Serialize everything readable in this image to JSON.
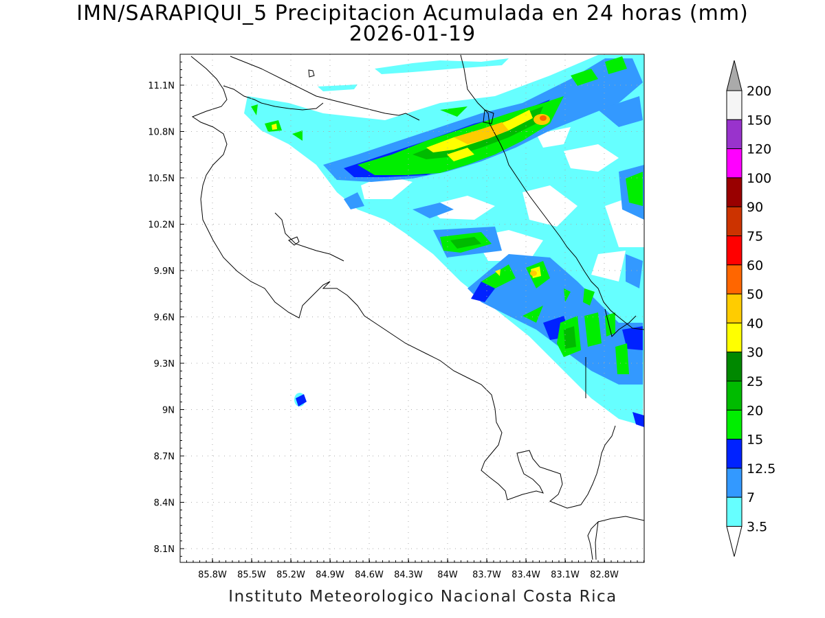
{
  "title": "IMN/SARAPIQUI_5 Precipitacion Acumulada en 24 horas (mm)",
  "date": "2026-01-19",
  "footer": "Instituto Meteorologico Nacional Costa Rica",
  "map": {
    "lon_range": [
      -86.0,
      -82.58
    ],
    "lat_range": [
      8.0,
      11.3
    ],
    "lon_labels": [
      "85.8W",
      "85.5W",
      "85.2W",
      "84.9W",
      "84.6W",
      "84.3W",
      "84W",
      "83.7W",
      "83.4W",
      "83.1W",
      "82.8W"
    ],
    "lat_labels": [
      "11.1N",
      "10.8N",
      "10.5N",
      "10.2N",
      "9.9N",
      "9.6N",
      "9.3N",
      "9N",
      "8.7N",
      "8.4N",
      "8.1N"
    ]
  },
  "colorbar": {
    "levels": [
      "3.5",
      "7",
      "12.5",
      "15",
      "20",
      "25",
      "30",
      "40",
      "50",
      "60",
      "75",
      "90",
      "100",
      "120",
      "150",
      "200"
    ],
    "colors": [
      "#66ffff",
      "#3399ff",
      "#0022ff",
      "#00ee00",
      "#00bb00",
      "#008800",
      "#ffff00",
      "#ffcc00",
      "#ff6600",
      "#ff0000",
      "#cc3300",
      "#990000",
      "#ff00ff",
      "#9933cc",
      "#f5f5f5",
      "#aaaaaa"
    ]
  }
}
